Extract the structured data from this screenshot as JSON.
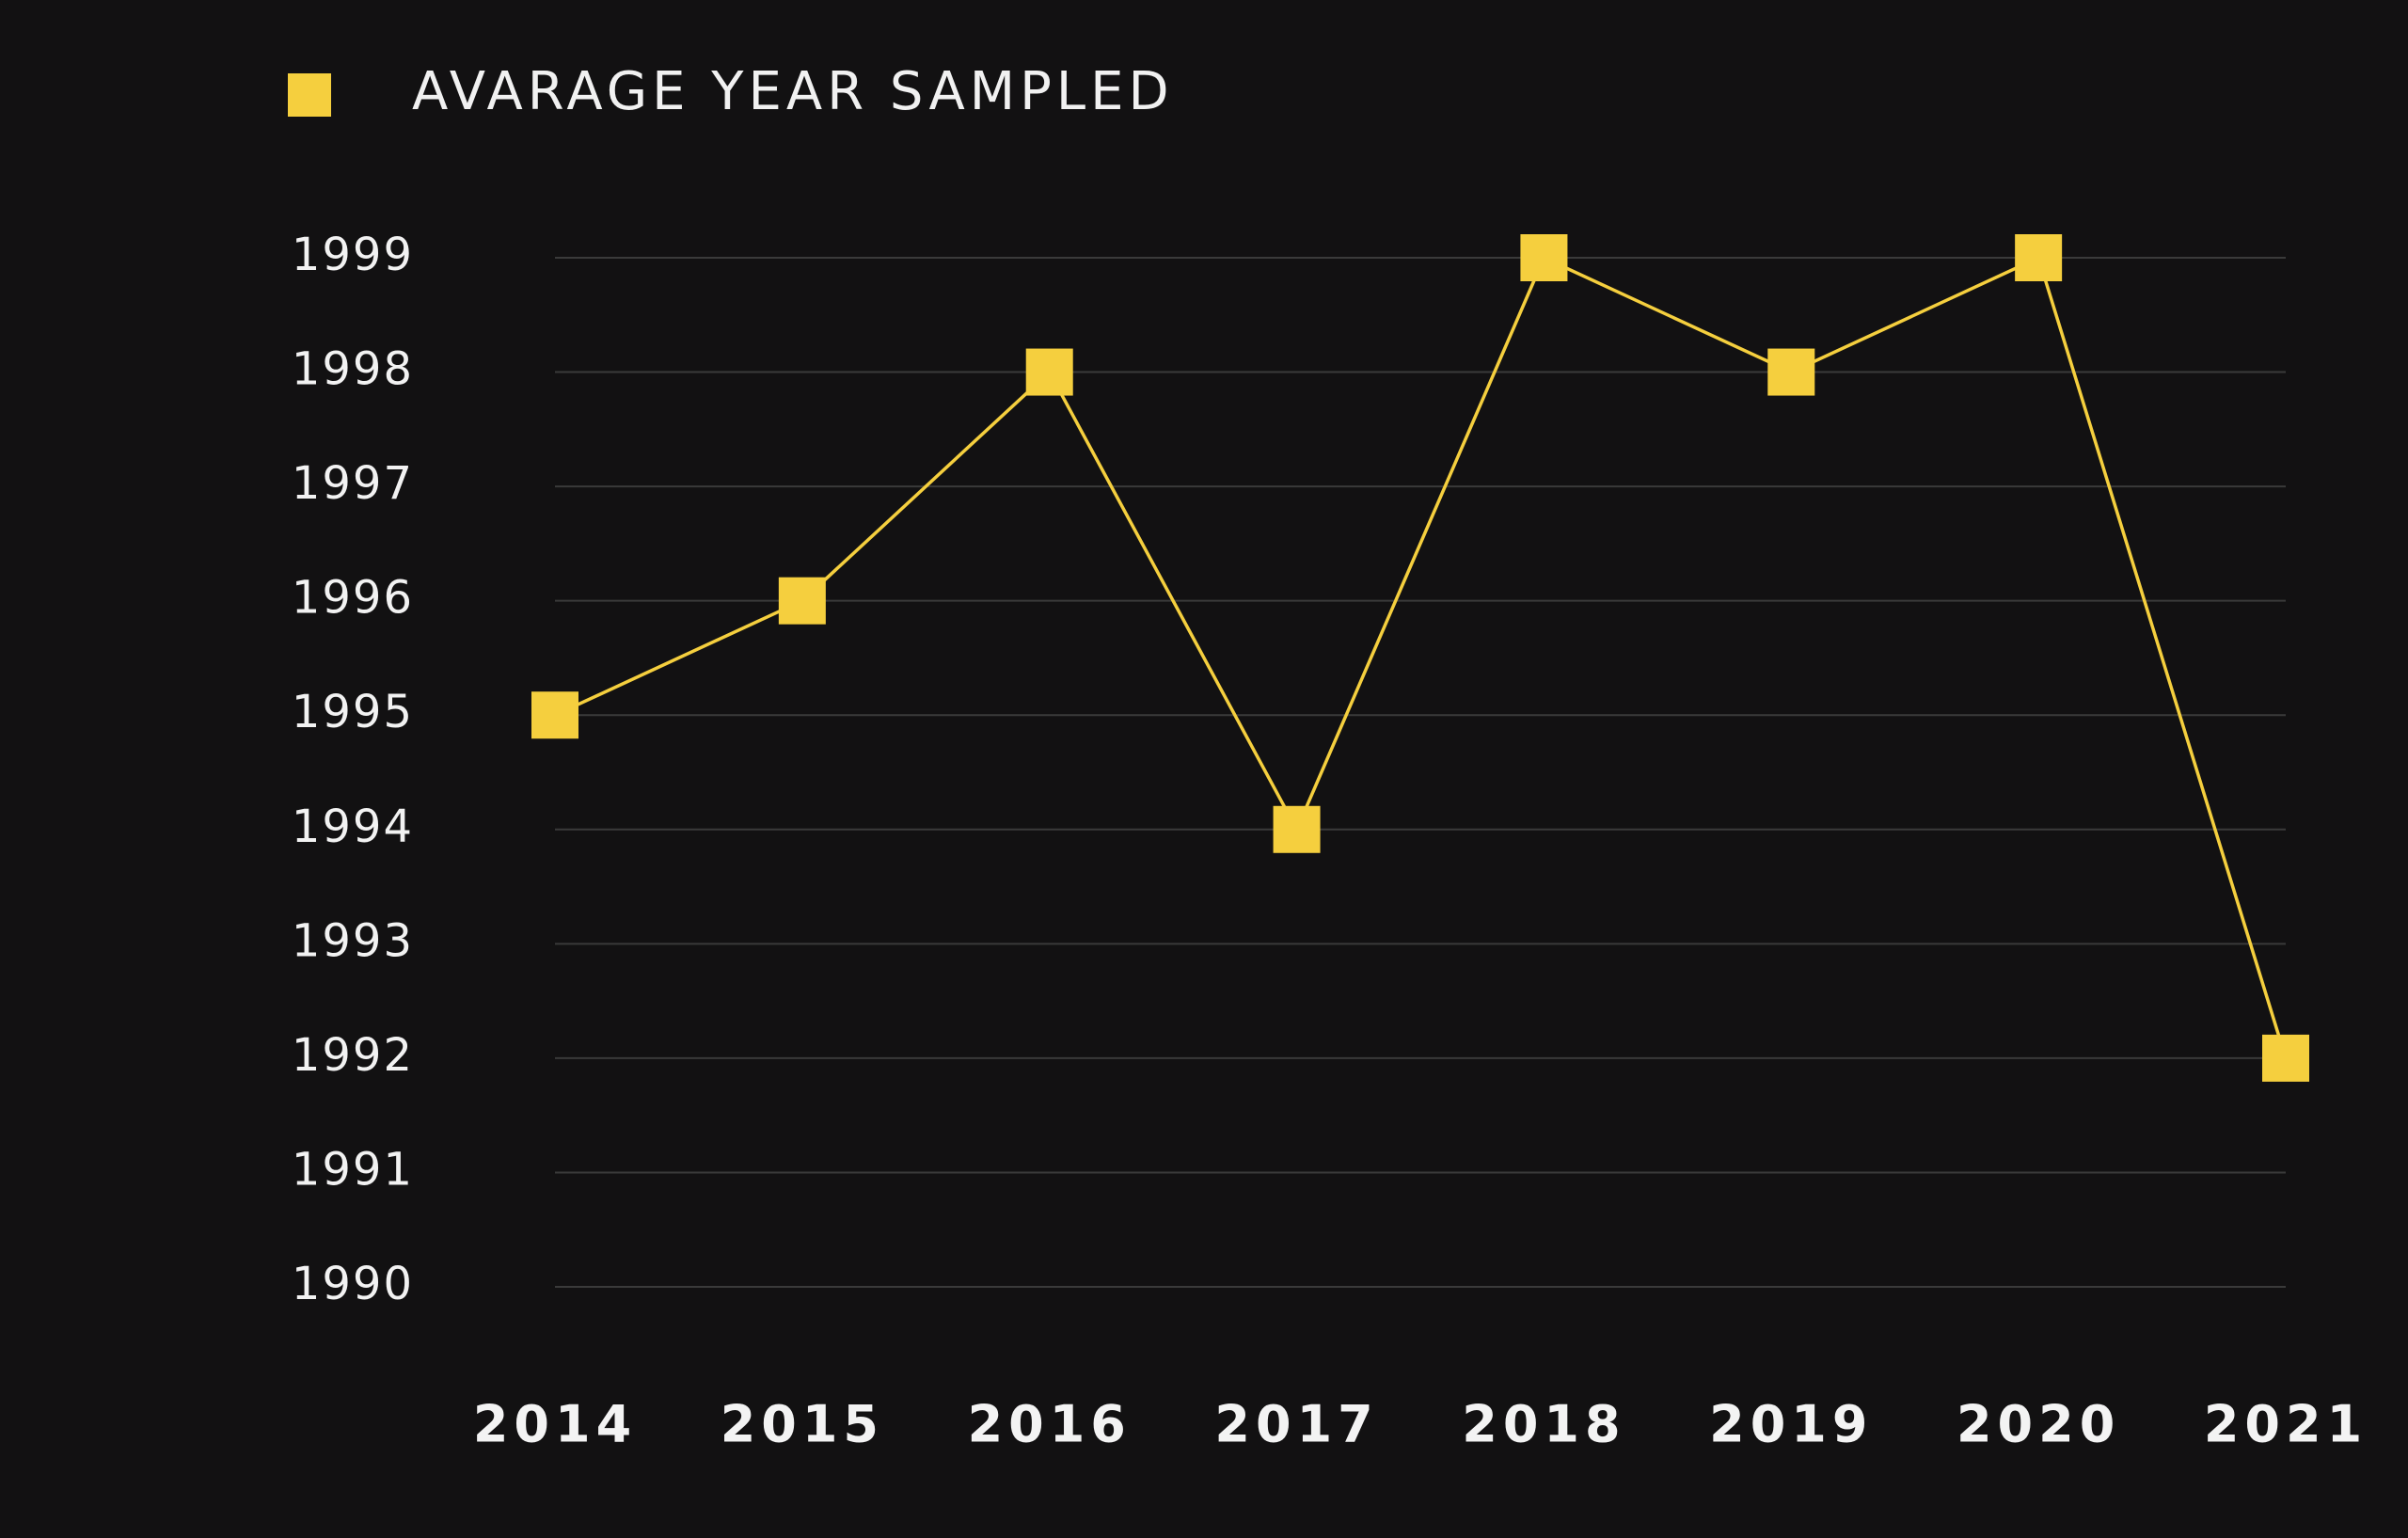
{
  "chart_data": {
    "type": "line",
    "legend": {
      "label": "AVARAGE YEAR SAMPLED",
      "position": "top-left"
    },
    "categories": [
      "2014",
      "2015",
      "2016",
      "2017",
      "2018",
      "2019",
      "2020",
      "2021"
    ],
    "series": [
      {
        "name": "AVARAGE YEAR SAMPLED",
        "values": [
          1995,
          1996,
          1998,
          1994,
          1999,
          1998,
          1999,
          1992
        ],
        "color": "#F5CF3E",
        "marker": "square"
      }
    ],
    "y_ticks": [
      {
        "label": "1999",
        "value": 1999,
        "color": "#F2F2F2"
      },
      {
        "label": "1998",
        "value": 1998,
        "color": "#F2F2F2"
      },
      {
        "label": "1997",
        "value": 1997,
        "color": "#F2F2F2"
      },
      {
        "label": "1996",
        "value": 1996,
        "color": "#F2F2F2"
      },
      {
        "label": "1995",
        "value": 1995,
        "color": "#F2F2F2"
      },
      {
        "label": "1994",
        "value": 1994,
        "color": "#F2F2F2"
      },
      {
        "label": "1993",
        "value": 1993,
        "color": "#F2F2F2"
      },
      {
        "label": "1992",
        "value": 1992,
        "color": "#E9C64A"
      },
      {
        "label": "1991",
        "value": 1991,
        "color": "#F2F2F2"
      },
      {
        "label": "1990",
        "value": 1990,
        "color": "#F2F2F2"
      }
    ],
    "ylim": [
      1990,
      1999
    ],
    "grid": true,
    "title": "",
    "xlabel": "",
    "ylabel": "",
    "colors": {
      "background": "#121112",
      "grid": "#3A3A3A",
      "text": "#F2F2F2",
      "accent": "#F5CF3E"
    }
  }
}
